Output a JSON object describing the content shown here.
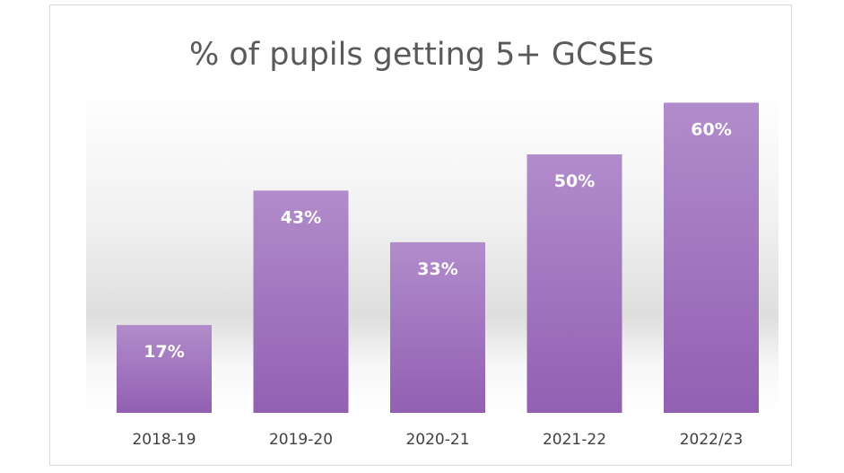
{
  "chart_data": {
    "type": "bar",
    "title": "% of pupils getting 5+ GCSEs",
    "categories": [
      "2018-19",
      "2019-20",
      "2020-21",
      "2021-22",
      "2022/23"
    ],
    "values": [
      17,
      43,
      33,
      50,
      60
    ],
    "data_labels": [
      "17%",
      "43%",
      "33%",
      "50%",
      "60%"
    ],
    "xlabel": "",
    "ylabel": "",
    "ylim": [
      0,
      70
    ],
    "grid": false,
    "legend": "none",
    "colors": {
      "bar_top": "#b18ccb",
      "bar_bottom": "#9260b3",
      "title": "#595959",
      "tick": "#404040",
      "label": "#ffffff"
    }
  }
}
